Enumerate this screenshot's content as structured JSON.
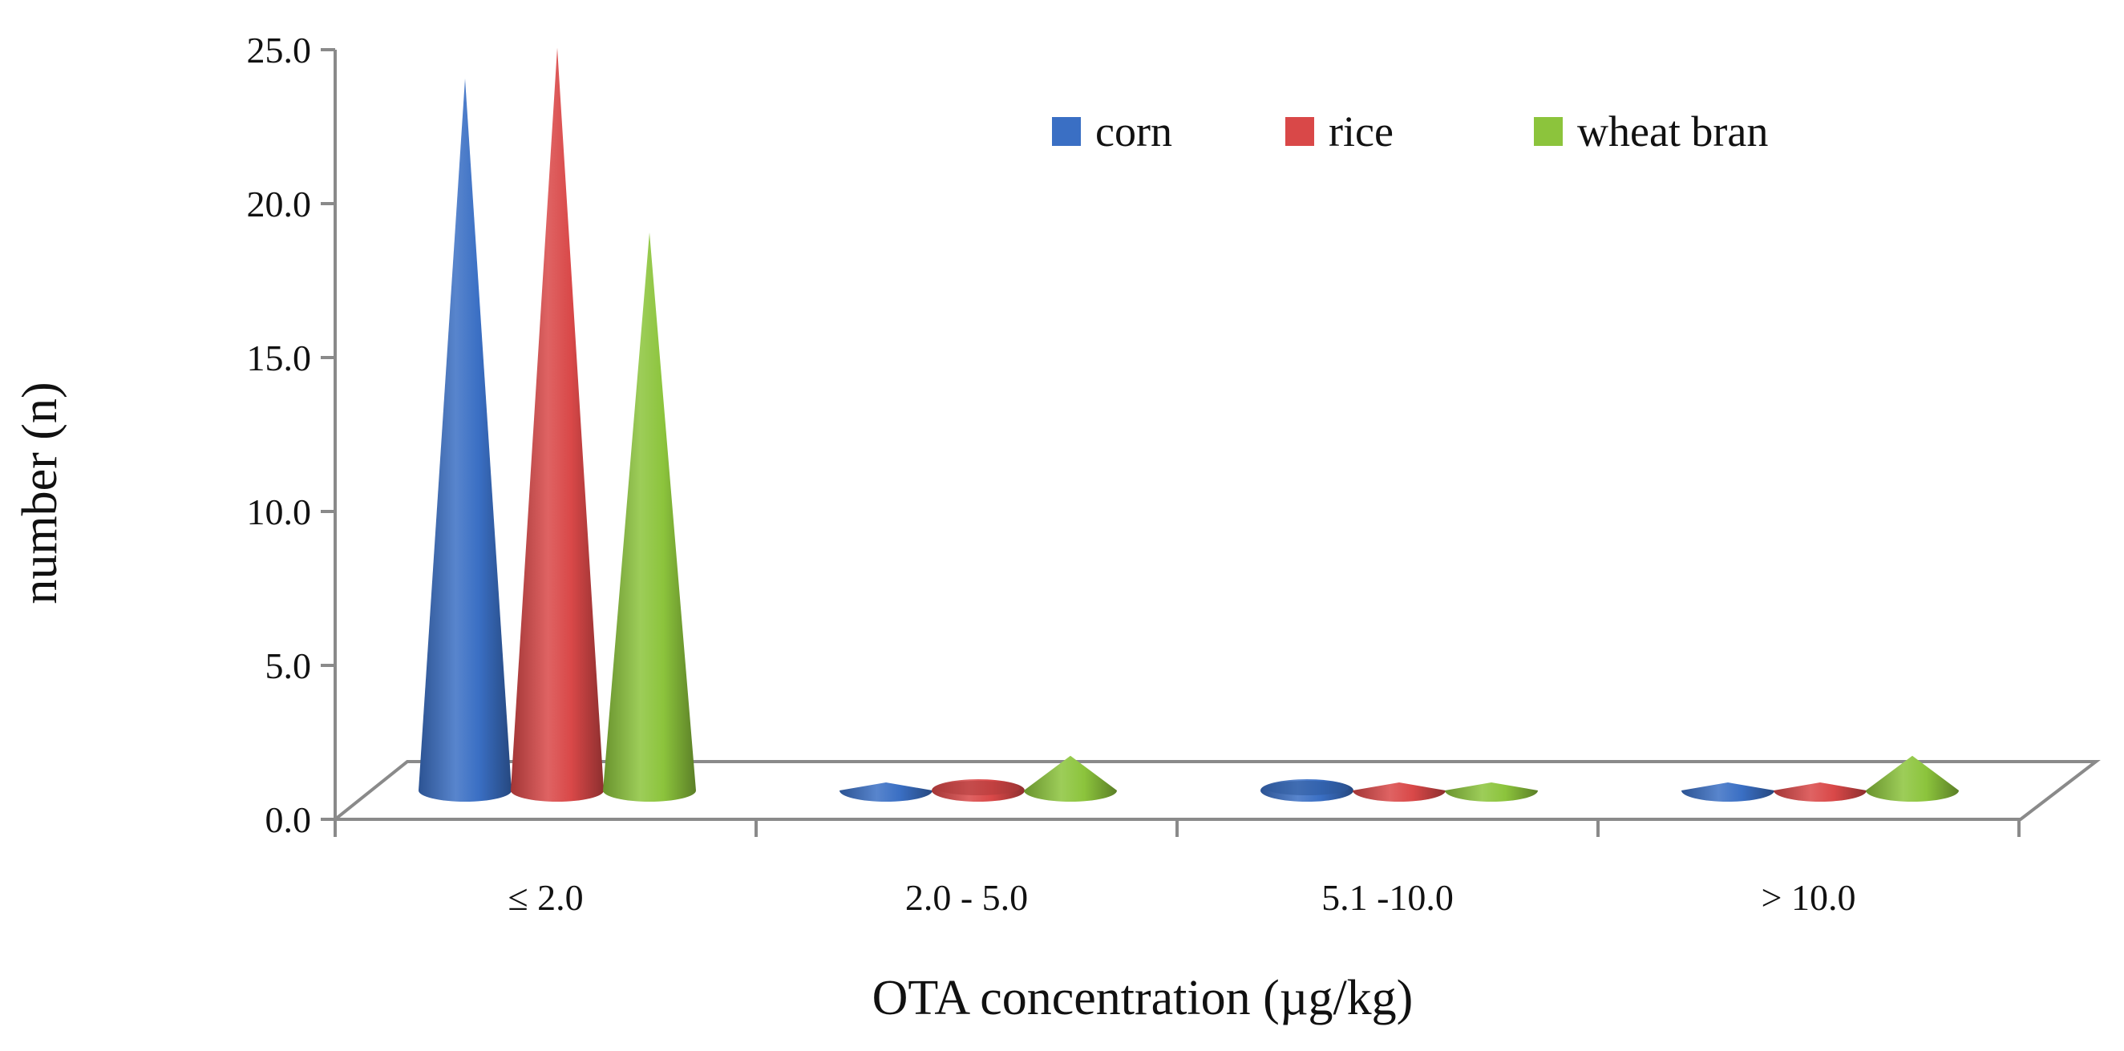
{
  "chart_data": {
    "type": "bar",
    "style": "3d-cone",
    "title": "",
    "xlabel": "OTA concentration (µg/kg)",
    "ylabel": "number (n)",
    "ylim": [
      0,
      25
    ],
    "yticks": [
      "0.0",
      "5.0",
      "10.0",
      "15.0",
      "20.0",
      "25.0"
    ],
    "categories": [
      "≤ 2.0",
      "2.0 - 5.0",
      "5.1 -10.0",
      "> 10.0"
    ],
    "series": [
      {
        "name": "corn",
        "color": "#3a6fc4",
        "values": [
          25,
          1,
          0,
          2
        ]
      },
      {
        "name": "rice",
        "color": "#d94848",
        "values": [
          26,
          0,
          1,
          1
        ]
      },
      {
        "name": "wheat bran",
        "color": "#8cc43c",
        "values": [
          20,
          3,
          1,
          3
        ]
      }
    ],
    "legend_position": "top-right",
    "grid": false
  }
}
